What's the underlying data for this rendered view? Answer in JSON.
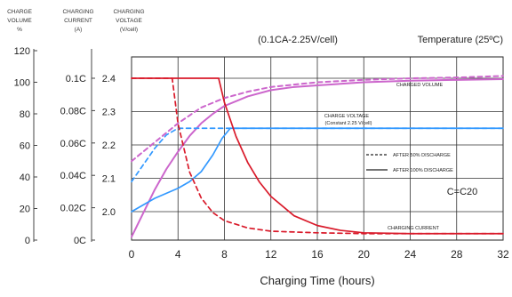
{
  "chart_data": {
    "type": "line",
    "header": {
      "condition": "(0.1CA-2.25V/cell)",
      "temperature": "Temperature (25ºC)"
    },
    "xlabel": "Charging Time (hours)",
    "xlim": [
      0,
      32
    ],
    "x_ticks": [
      "0",
      "4",
      "8",
      "12",
      "16",
      "20",
      "24",
      "28",
      "32"
    ],
    "axes": {
      "charge_volume": {
        "label_lines": [
          "CHARGE",
          "VOLUME",
          "%"
        ],
        "ticks": [
          "120",
          "100",
          "80",
          "60",
          "40",
          "20",
          "0"
        ],
        "range": [
          0,
          120
        ]
      },
      "charging_current": {
        "label_lines": [
          "CHARGING",
          "CURRENT",
          "(A)"
        ],
        "ticks": [
          "0.1C",
          "0.08C",
          "0.06C",
          "0.04C",
          "0.02C",
          "0C"
        ],
        "range": [
          0,
          0.1
        ]
      },
      "charging_voltage": {
        "label_lines": [
          "CHARGING",
          "VOLTAGE",
          "(V/cell)"
        ],
        "ticks": [
          "2.4",
          "2.3",
          "2.2",
          "2.1",
          "2.0"
        ],
        "range": [
          1.9,
          2.4
        ]
      }
    },
    "legend": {
      "placement": "center-right",
      "entries": [
        {
          "label": "AFTER 50% DISCHARGE",
          "style": "dashed"
        },
        {
          "label": "AFTER 100% DISCHARGE",
          "style": "solid"
        }
      ]
    },
    "annotations": {
      "charged_volume": "CHARGED VOLUME",
      "charge_voltage_1": "CHARGE VOLTAGE",
      "charge_voltage_2": "(Constant 2.25 V/cell)",
      "charging_current": "CHARGING CURRENT",
      "capacity": "C=C20"
    },
    "colors": {
      "charged_volume": "#cc66cc",
      "charge_voltage": "#3399ff",
      "charging_current": "#d91a2a",
      "grid": "#222222"
    },
    "series": [
      {
        "axis": "charge_volume",
        "color_key": "charged_volume",
        "style": "solid",
        "points": [
          [
            0,
            2
          ],
          [
            1,
            17
          ],
          [
            2,
            32
          ],
          [
            3,
            45
          ],
          [
            4,
            56
          ],
          [
            5,
            66
          ],
          [
            6,
            74
          ],
          [
            7,
            80
          ],
          [
            8,
            85
          ],
          [
            10,
            91
          ],
          [
            12,
            95
          ],
          [
            14,
            97
          ],
          [
            16,
            98
          ],
          [
            20,
            100
          ],
          [
            24,
            101
          ],
          [
            28,
            101.5
          ],
          [
            32,
            102
          ]
        ]
      },
      {
        "axis": "charge_volume",
        "color_key": "charged_volume",
        "style": "dashed",
        "points": [
          [
            0,
            50
          ],
          [
            2,
            62
          ],
          [
            4,
            74
          ],
          [
            6,
            84
          ],
          [
            8,
            90
          ],
          [
            10,
            94
          ],
          [
            12,
            97
          ],
          [
            16,
            100
          ],
          [
            20,
            101.5
          ],
          [
            24,
            102.5
          ],
          [
            28,
            103
          ],
          [
            32,
            104
          ]
        ]
      },
      {
        "axis": "charging_voltage",
        "color_key": "charge_voltage",
        "style": "solid",
        "points": [
          [
            0,
            2.0
          ],
          [
            2,
            2.04
          ],
          [
            4,
            2.07
          ],
          [
            5,
            2.09
          ],
          [
            6,
            2.12
          ],
          [
            7,
            2.17
          ],
          [
            7.8,
            2.22
          ],
          [
            8.5,
            2.25
          ],
          [
            32,
            2.25
          ]
        ]
      },
      {
        "axis": "charging_voltage",
        "color_key": "charge_voltage",
        "style": "dashed",
        "points": [
          [
            0,
            2.09
          ],
          [
            1,
            2.14
          ],
          [
            2,
            2.19
          ],
          [
            3,
            2.23
          ],
          [
            4,
            2.25
          ],
          [
            32,
            2.25
          ]
        ]
      },
      {
        "axis": "charging_current",
        "color_key": "charging_current",
        "style": "solid",
        "points": [
          [
            0,
            0.1
          ],
          [
            7.5,
            0.1
          ],
          [
            8,
            0.085
          ],
          [
            9,
            0.064
          ],
          [
            10,
            0.048
          ],
          [
            11,
            0.036
          ],
          [
            12,
            0.027
          ],
          [
            14,
            0.015
          ],
          [
            16,
            0.009
          ],
          [
            18,
            0.006
          ],
          [
            20,
            0.0045
          ],
          [
            24,
            0.004
          ],
          [
            28,
            0.004
          ],
          [
            32,
            0.004
          ]
        ]
      },
      {
        "axis": "charging_current",
        "color_key": "charging_current",
        "style": "dashed",
        "points": [
          [
            0,
            0.1
          ],
          [
            3.5,
            0.1
          ],
          [
            4,
            0.072
          ],
          [
            5,
            0.042
          ],
          [
            6,
            0.026
          ],
          [
            7,
            0.017
          ],
          [
            8,
            0.012
          ],
          [
            10,
            0.0075
          ],
          [
            12,
            0.0055
          ],
          [
            16,
            0.0045
          ],
          [
            20,
            0.004
          ],
          [
            32,
            0.004
          ]
        ]
      }
    ]
  }
}
